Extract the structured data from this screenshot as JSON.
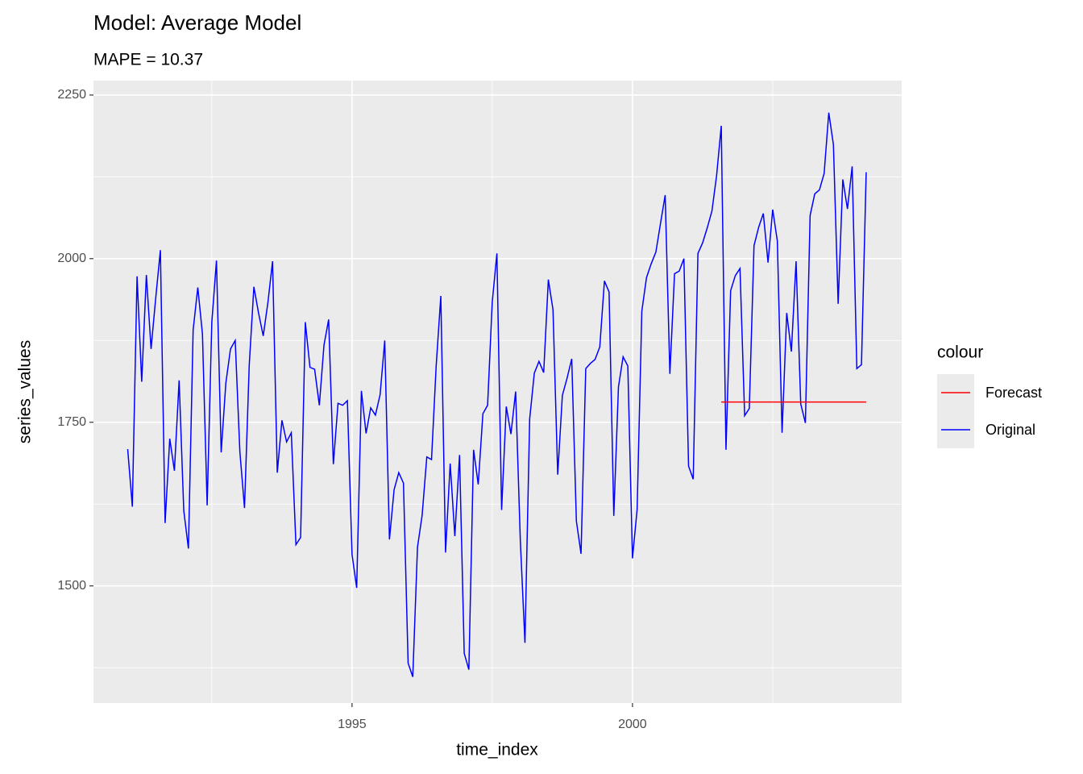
{
  "chart_data": {
    "type": "line",
    "title": "Model:  Average Model",
    "subtitle": "MAPE = 10.37",
    "x_label": "time_index",
    "y_label": "series_values",
    "legend_title": "colour",
    "legend_position": "right",
    "grid": true,
    "xlim": [
      1990.39,
      2004.8
    ],
    "ylim": [
      1321,
      2272
    ],
    "xticks": [
      1995,
      2000
    ],
    "yticks": [
      1500,
      1750,
      2000,
      2250
    ],
    "xminor": [
      1992.5,
      1997.5,
      2002.5
    ],
    "yminor": [
      1375,
      1625,
      1875,
      2125
    ],
    "series": [
      {
        "name": "Forecast",
        "color": "#ff0000",
        "x": [
          2001.583,
          2001.667,
          2001.75,
          2001.833,
          2001.917,
          2002,
          2002.083,
          2002.167,
          2002.25,
          2002.333,
          2002.417,
          2002.5,
          2002.583,
          2002.667,
          2002.75,
          2002.833,
          2002.917,
          2003,
          2003.083,
          2003.167,
          2003.25,
          2003.333,
          2003.417,
          2003.5,
          2003.583,
          2003.667,
          2003.75,
          2003.833,
          2003.917,
          2004,
          2004.083,
          2004.167
        ],
        "values": [
          1781,
          1781,
          1781,
          1781,
          1781,
          1781,
          1781,
          1781,
          1781,
          1781,
          1781,
          1781,
          1781,
          1781,
          1781,
          1781,
          1781,
          1781,
          1781,
          1781,
          1781,
          1781,
          1781,
          1781,
          1781,
          1781,
          1781,
          1781,
          1781,
          1781,
          1781,
          1781
        ]
      },
      {
        "name": "Original",
        "color": "#0000ff",
        "x": [
          1991,
          1991.083,
          1991.167,
          1991.25,
          1991.333,
          1991.417,
          1991.5,
          1991.583,
          1991.667,
          1991.75,
          1991.833,
          1991.917,
          1992,
          1992.083,
          1992.167,
          1992.25,
          1992.333,
          1992.417,
          1992.5,
          1992.583,
          1992.667,
          1992.75,
          1992.833,
          1992.917,
          1993,
          1993.083,
          1993.167,
          1993.25,
          1993.333,
          1993.417,
          1993.5,
          1993.583,
          1993.667,
          1993.75,
          1993.833,
          1993.917,
          1994,
          1994.083,
          1994.167,
          1994.25,
          1994.333,
          1994.417,
          1994.5,
          1994.583,
          1994.667,
          1994.75,
          1994.833,
          1994.917,
          1995,
          1995.083,
          1995.167,
          1995.25,
          1995.333,
          1995.417,
          1995.5,
          1995.583,
          1995.667,
          1995.75,
          1995.833,
          1995.917,
          1996,
          1996.083,
          1996.167,
          1996.25,
          1996.333,
          1996.417,
          1996.5,
          1996.583,
          1996.667,
          1996.75,
          1996.833,
          1996.917,
          1997,
          1997.083,
          1997.167,
          1997.25,
          1997.333,
          1997.417,
          1997.5,
          1997.583,
          1997.667,
          1997.75,
          1997.833,
          1997.917,
          1998,
          1998.083,
          1998.167,
          1998.25,
          1998.333,
          1998.417,
          1998.5,
          1998.583,
          1998.667,
          1998.75,
          1998.833,
          1998.917,
          1999,
          1999.083,
          1999.167,
          1999.25,
          1999.333,
          1999.417,
          1999.5,
          1999.583,
          1999.667,
          1999.75,
          1999.833,
          1999.917,
          2000,
          2000.083,
          2000.167,
          2000.25,
          2000.333,
          2000.417,
          2000.5,
          2000.583,
          2000.667,
          2000.75,
          2000.833,
          2000.917,
          2001,
          2001.083,
          2001.167,
          2001.25,
          2001.333,
          2001.417,
          2001.5,
          2001.583,
          2001.667,
          2001.75,
          2001.833,
          2001.917,
          2002,
          2002.083,
          2002.167,
          2002.25,
          2002.333,
          2002.417,
          2002.5,
          2002.583,
          2002.667,
          2002.75,
          2002.833,
          2002.917,
          2003,
          2003.083,
          2003.167,
          2003.25,
          2003.333,
          2003.417,
          2003.5,
          2003.583,
          2003.667,
          2003.75,
          2003.833,
          2003.917,
          2004,
          2004.083,
          2004.167
        ],
        "values": [
          1709,
          1621,
          1973,
          1812,
          1975,
          1862,
          1940,
          2013,
          1596,
          1725,
          1676,
          1814,
          1615,
          1557,
          1891,
          1956,
          1885,
          1623,
          1903,
          1997,
          1704,
          1810,
          1862,
          1875,
          1705,
          1619,
          1837,
          1957,
          1917,
          1882,
          1933,
          1996,
          1673,
          1753,
          1720,
          1734,
          1563,
          1574,
          1903,
          1834,
          1831,
          1776,
          1868,
          1907,
          1686,
          1779,
          1776,
          1783,
          1548,
          1497,
          1798,
          1733,
          1772,
          1761,
          1792,
          1875,
          1571,
          1647,
          1673,
          1657,
          1382,
          1361,
          1559,
          1608,
          1697,
          1693,
          1836,
          1943,
          1551,
          1687,
          1576,
          1700,
          1397,
          1372,
          1708,
          1655,
          1763,
          1776,
          1934,
          2008,
          1616,
          1774,
          1732,
          1797,
          1570,
          1413,
          1755,
          1825,
          1843,
          1826,
          1968,
          1922,
          1670,
          1791,
          1817,
          1847,
          1599,
          1549,
          1832,
          1840,
          1846,
          1865,
          1966,
          1949,
          1607,
          1804,
          1850,
          1836,
          1542,
          1617,
          1920,
          1971,
          1992,
          2010,
          2054,
          2097,
          1824,
          1977,
          1981,
          2000,
          1683,
          1663,
          2008,
          2024,
          2047,
          2073,
          2127,
          2203,
          1708,
          1951,
          1974,
          1985,
          1760,
          1771,
          2020,
          2048,
          2069,
          1994,
          2075,
          2027,
          1734,
          1917,
          1858,
          1996,
          1778,
          1749,
          2066,
          2099,
          2105,
          2130,
          2223,
          2174,
          1931,
          2121,
          2076,
          2141,
          1832,
          1838,
          2132
        ]
      }
    ]
  }
}
